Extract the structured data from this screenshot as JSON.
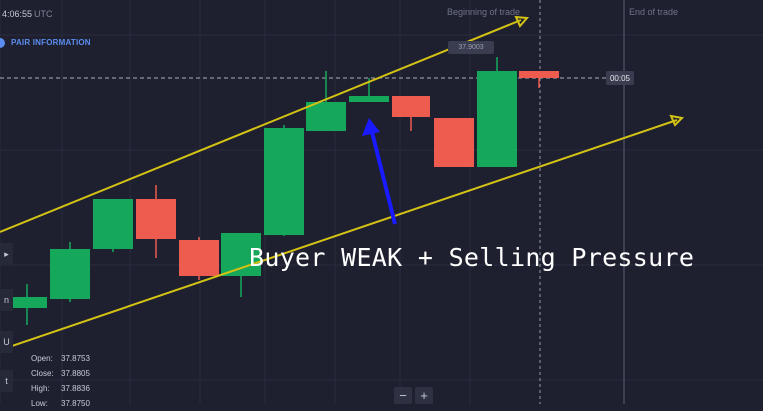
{
  "header": {
    "time": "4:06:55",
    "timezone": "UTC",
    "pair_info_label": "PAIR INFORMATION",
    "beginning_label": "Beginning of trade",
    "end_label": "End of trade"
  },
  "price_tag": "37.9003",
  "timer": "00:05",
  "annotation": "Buyer WEAK + Selling Pressure",
  "ohlc": [
    {
      "key": "Open:",
      "value": "37.8753"
    },
    {
      "key": "Close:",
      "value": "37.8805"
    },
    {
      "key": "High:",
      "value": "37.8836"
    },
    {
      "key": "Low:",
      "value": "37.8750"
    }
  ],
  "zoom": {
    "minus": "−",
    "plus": "+"
  },
  "left_tabs": [
    "▸",
    "n",
    "U",
    "t"
  ],
  "colors": {
    "background": "#1e2030",
    "bull": "#16a85a",
    "bear": "#ee5b4f",
    "channel": "#d4c214",
    "arrow": "#1a1aff"
  }
}
